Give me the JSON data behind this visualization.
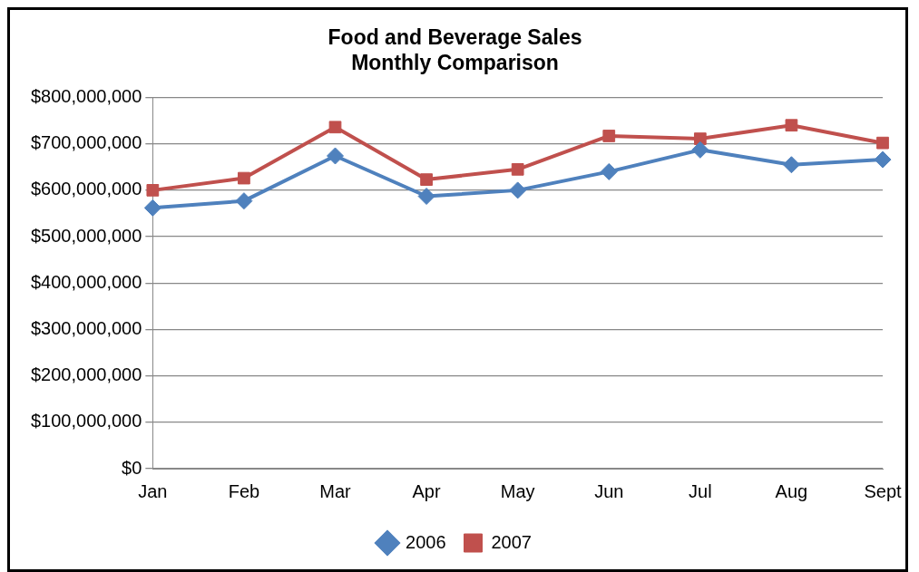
{
  "chart_data": {
    "type": "line",
    "title": [
      "Food and Beverage Sales",
      "Monthly Comparison"
    ],
    "categories": [
      "Jan",
      "Feb",
      "Mar",
      "Apr",
      "May",
      "Jun",
      "Jul",
      "Aug",
      "Sept"
    ],
    "series": [
      {
        "name": "2006",
        "color": "#4f81bd",
        "marker": "diamond",
        "values": [
          562000000,
          577000000,
          674000000,
          587000000,
          600000000,
          640000000,
          687000000,
          655000000,
          666000000
        ]
      },
      {
        "name": "2007",
        "color": "#c0504d",
        "marker": "square",
        "values": [
          600000000,
          626000000,
          736000000,
          623000000,
          645000000,
          717000000,
          711000000,
          740000000,
          702000000
        ]
      }
    ],
    "ylim": [
      0,
      800000000
    ],
    "yticks": [
      {
        "value": 0,
        "label": "$0"
      },
      {
        "value": 100000000,
        "label": "$100,000,000"
      },
      {
        "value": 200000000,
        "label": "$200,000,000"
      },
      {
        "value": 300000000,
        "label": "$300,000,000"
      },
      {
        "value": 400000000,
        "label": "$400,000,000"
      },
      {
        "value": 500000000,
        "label": "$500,000,000"
      },
      {
        "value": 600000000,
        "label": "$600,000,000"
      },
      {
        "value": 700000000,
        "label": "$700,000,000"
      },
      {
        "value": 800000000,
        "label": "$800,000,000"
      }
    ],
    "grid": "y",
    "legend": "bottom",
    "line_style": "solid"
  }
}
